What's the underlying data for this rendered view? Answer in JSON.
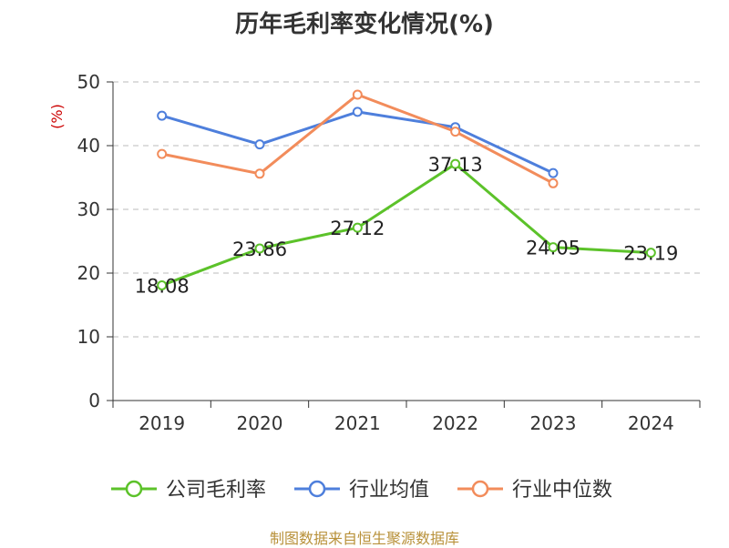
{
  "chart_data": {
    "type": "line",
    "title": "历年毛利率变化情况(%)",
    "ylabel": "(%)",
    "ylim": [
      0,
      50
    ],
    "yticks": [
      0,
      10,
      20,
      30,
      40,
      50
    ],
    "categories": [
      "2019",
      "2020",
      "2021",
      "2022",
      "2023",
      "2024"
    ],
    "grid": true,
    "legend_position": "bottom",
    "series": [
      {
        "name": "公司毛利率",
        "color": "#5cc22a",
        "values": [
          18.08,
          23.86,
          27.12,
          37.13,
          24.05,
          23.19
        ],
        "labels": [
          "18.08",
          "23.86",
          "27.12",
          "37.13",
          "24.05",
          "23.19"
        ]
      },
      {
        "name": "行业均值",
        "color": "#4e7fdc",
        "values": [
          44.7,
          40.2,
          45.3,
          42.9,
          35.7,
          null
        ]
      },
      {
        "name": "行业中位数",
        "color": "#f28c5b",
        "values": [
          38.7,
          35.6,
          48.0,
          42.2,
          34.1,
          null
        ]
      }
    ]
  },
  "source_note": "制图数据来自恒生聚源数据库"
}
